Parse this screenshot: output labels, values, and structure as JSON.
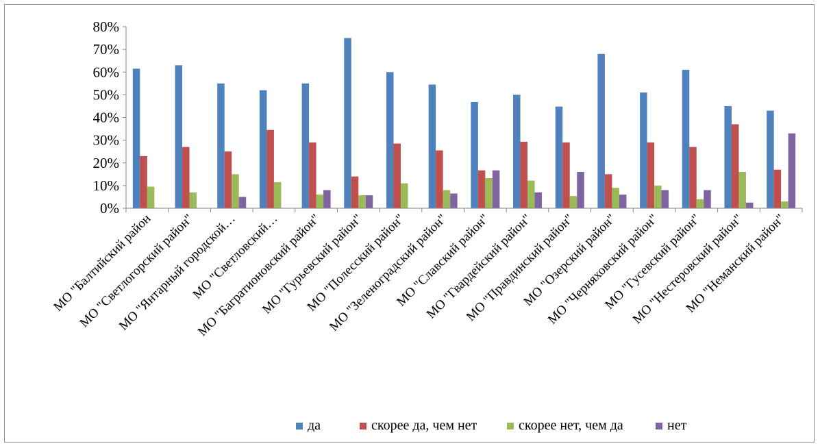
{
  "chart_data": {
    "type": "bar",
    "title": "",
    "xlabel": "",
    "ylabel": "",
    "ylim": [
      0,
      80
    ],
    "y_tick_step": 10,
    "y_tick_format": "percent",
    "grid": false,
    "legend_position": "bottom",
    "categories": [
      "МО \"Балтийский район",
      "МО \"Светлогорский район\"",
      "МО \"Янтарный городской…",
      "МО \"Светловский…",
      "МО \"Багратионовский район\"",
      "МО \"Гурьевский район\"",
      "МО \"Полесский район\"",
      "МО \"Зеленоградский район\"",
      "МО \"Славский район\"",
      "МО \"Гвардейский район\"",
      "МО \"Правдинский район\"",
      "МО \"Озерский район\"",
      "МО \"Черняховский район\"",
      "МО \"Гусевский район\"",
      "МО \"Нестеровский район\"",
      "МО \"Неманский район\""
    ],
    "series": [
      {
        "name": "да",
        "color": "#4f81bd",
        "values": [
          61.5,
          63,
          55,
          52,
          55,
          75,
          60,
          54.5,
          46.8,
          50,
          44.8,
          68,
          51,
          61,
          45,
          43
        ]
      },
      {
        "name": "скорее да, чем нет",
        "color": "#c0504d",
        "values": [
          23,
          27,
          25,
          34.5,
          29,
          14,
          28.5,
          25.5,
          16.7,
          29.3,
          29,
          15,
          29,
          27,
          37,
          17
        ]
      },
      {
        "name": "скорее нет, чем да",
        "color": "#9bbb59",
        "values": [
          9.5,
          7,
          15,
          11.5,
          6,
          5.7,
          11,
          8,
          13.3,
          12.2,
          5.4,
          9,
          10,
          4,
          16,
          3
        ]
      },
      {
        "name": "нет",
        "color": "#8064a2",
        "values": [
          0,
          0,
          5,
          0,
          8,
          5.7,
          0,
          6.5,
          16.7,
          7,
          16,
          6,
          8,
          8,
          2.5,
          33
        ]
      }
    ]
  }
}
